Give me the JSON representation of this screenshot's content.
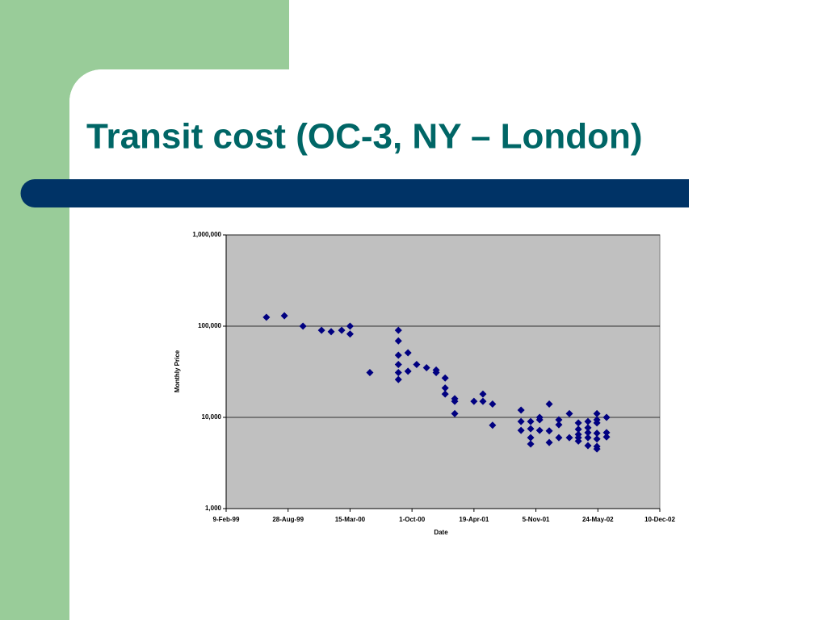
{
  "chart_data": {
    "type": "scatter",
    "title": "Transit cost (OC-3, NY – London)",
    "x_label": "Date",
    "y_label": "Monthly Price",
    "x": [
      "1999-06-19",
      "1999-08-16",
      "1999-10-15",
      "1999-12-14",
      "2000-01-14",
      "2000-02-17",
      "2000-03-15",
      "2000-03-15",
      "2000-05-18",
      "2000-08-18",
      "2000-08-18",
      "2000-08-18",
      "2000-08-18",
      "2000-08-18",
      "2000-08-18",
      "2000-09-18",
      "2000-09-18",
      "2000-10-16",
      "2000-11-17",
      "2000-12-18",
      "2000-12-18",
      "2001-01-16",
      "2001-01-16",
      "2001-01-16",
      "2001-02-16",
      "2001-02-16",
      "2001-02-16",
      "2001-04-19",
      "2001-05-18",
      "2001-05-18",
      "2001-06-18",
      "2001-06-18",
      "2001-09-18",
      "2001-09-18",
      "2001-09-18",
      "2001-10-19",
      "2001-10-19",
      "2001-10-19",
      "2001-10-19",
      "2001-11-17",
      "2001-11-17",
      "2001-11-17",
      "2001-12-18",
      "2001-12-18",
      "2001-12-18",
      "2002-01-18",
      "2002-01-18",
      "2002-01-18",
      "2002-02-21",
      "2002-02-21",
      "2002-03-22",
      "2002-03-22",
      "2002-03-22",
      "2002-03-22",
      "2002-03-22",
      "2002-04-22",
      "2002-04-22",
      "2002-04-22",
      "2002-04-22",
      "2002-04-22",
      "2002-05-21",
      "2002-05-21",
      "2002-05-21",
      "2002-05-21",
      "2002-05-21",
      "2002-05-21",
      "2002-05-21",
      "2002-06-21",
      "2002-06-21",
      "2002-06-21"
    ],
    "series": [
      {
        "color": "#000080",
        "values": [
          125000,
          130000,
          100000,
          90000,
          87000,
          90000,
          100000,
          82000,
          31000,
          90000,
          69000,
          48000,
          38000,
          31000,
          26000,
          51000,
          32000,
          38000,
          35000,
          33000,
          31000,
          27000,
          21000,
          18000,
          16000,
          15000,
          11000,
          15000,
          18000,
          15000,
          14000,
          8200,
          12000,
          9000,
          7200,
          9000,
          7500,
          6000,
          5100,
          10000,
          9400,
          7200,
          14000,
          7100,
          5300,
          9400,
          8300,
          6000,
          11000,
          6000,
          8700,
          7400,
          6500,
          6000,
          5500,
          9000,
          7700,
          6800,
          6000,
          4900,
          11000,
          9400,
          8700,
          6700,
          5800,
          4800,
          4500,
          10000,
          6800,
          6100
        ]
      }
    ],
    "xlim": [
      "1999-02-09",
      "2002-12-10"
    ],
    "xticks": [
      {
        "value": "1999-02-09",
        "label": "9-Feb-99"
      },
      {
        "value": "1999-08-28",
        "label": "28-Aug-99"
      },
      {
        "value": "2000-03-15",
        "label": "15-Mar-00"
      },
      {
        "value": "2000-10-01",
        "label": "1-Oct-00"
      },
      {
        "value": "2001-04-19",
        "label": "19-Apr-01"
      },
      {
        "value": "2001-11-05",
        "label": "5-Nov-01"
      },
      {
        "value": "2002-05-24",
        "label": "24-May-02"
      },
      {
        "value": "2002-12-10",
        "label": "10-Dec-02"
      }
    ],
    "ylim": [
      1000,
      1000000
    ],
    "y_scale": "log",
    "yticks": [
      {
        "value": 1000,
        "label": "1,000"
      },
      {
        "value": 10000,
        "label": "10,000"
      },
      {
        "value": 100000,
        "label": "100,000"
      },
      {
        "value": 1000000,
        "label": "1,000,000"
      }
    ],
    "grid": true
  }
}
